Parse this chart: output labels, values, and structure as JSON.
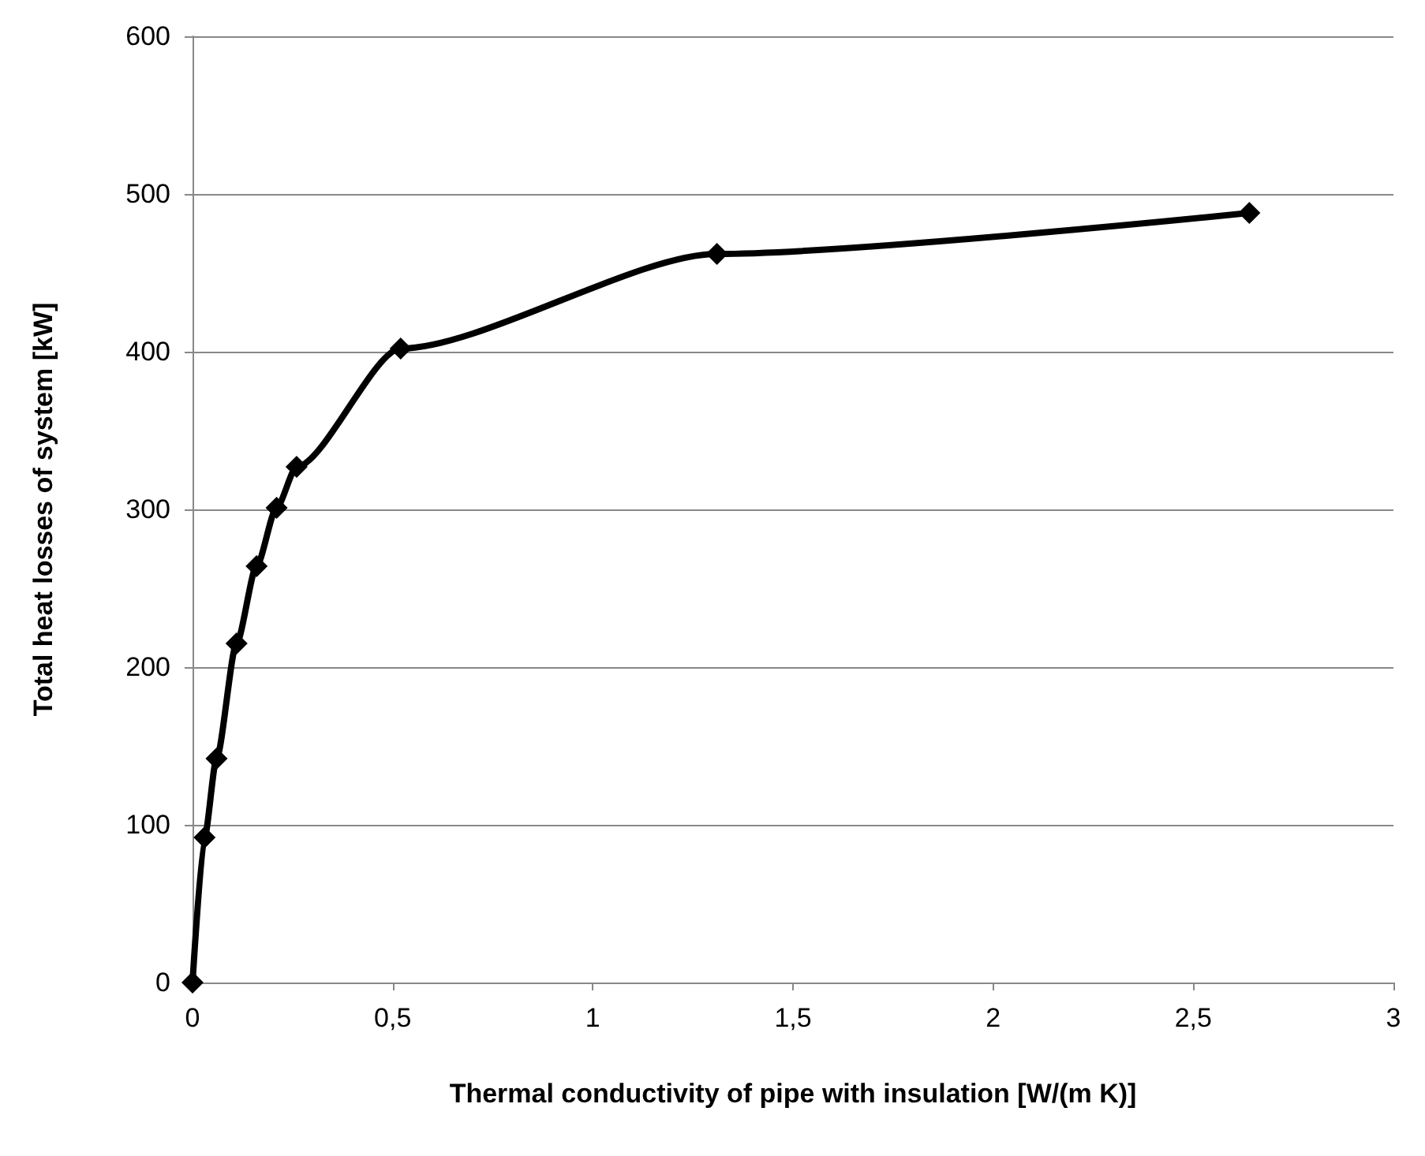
{
  "chart_data": {
    "type": "line",
    "xlabel": "Thermal conductivity of pipe with insulation [W/(m K)]",
    "ylabel": "Total heat losses of system [kW]",
    "series": [
      {
        "color": "#000000",
        "x": [
          0,
          0.03,
          0.06,
          0.11,
          0.16,
          0.21,
          0.26,
          0.52,
          1.31,
          2.64
        ],
        "values": [
          0,
          92,
          142,
          215,
          264,
          301,
          327,
          402,
          462,
          488
        ]
      }
    ],
    "xlim": [
      0,
      3
    ],
    "xticks": [
      0,
      {
        "value": 0.5,
        "label": "0,5"
      },
      1,
      {
        "value": 1.5,
        "label": "1,5"
      },
      2,
      {
        "value": 2.5,
        "label": "2,5"
      },
      3
    ],
    "ylim": [
      0,
      600
    ],
    "yticks": [
      0,
      100,
      200,
      300,
      400,
      500,
      600
    ],
    "grid": "y",
    "marker": "diamond",
    "line_style": "solid"
  }
}
